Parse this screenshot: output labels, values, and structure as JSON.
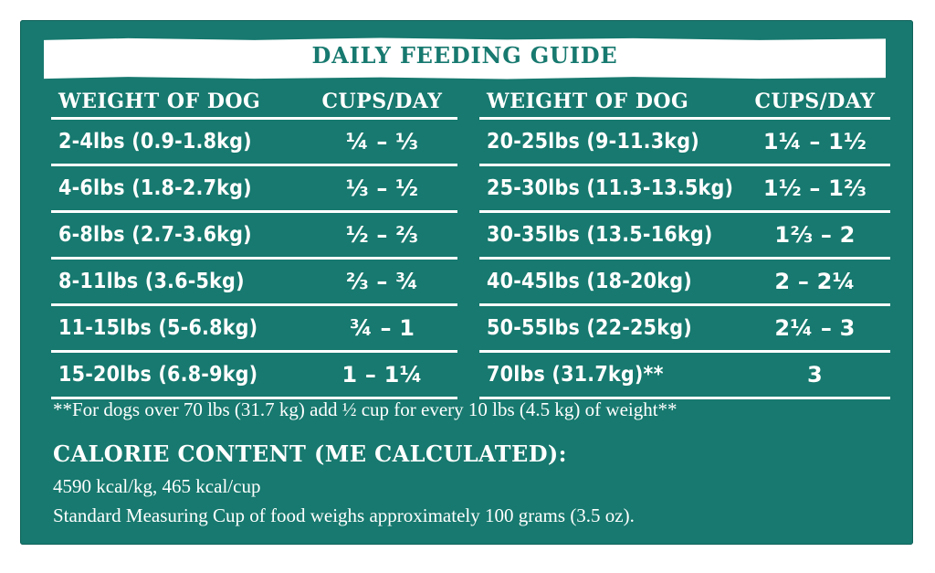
{
  "title": "DAILY FEEDING GUIDE",
  "headers": {
    "weight": "WEIGHT OF DOG",
    "cups": "CUPS/DAY"
  },
  "left_rows": [
    {
      "weight": "2-4lbs (0.9-1.8kg)",
      "cups": "¼ – ⅓"
    },
    {
      "weight": "4-6lbs (1.8-2.7kg)",
      "cups": "⅓ – ½"
    },
    {
      "weight": "6-8lbs (2.7-3.6kg)",
      "cups": "½ – ⅔"
    },
    {
      "weight": "8-11lbs (3.6-5kg)",
      "cups": "⅔ – ¾"
    },
    {
      "weight": "11-15lbs (5-6.8kg)",
      "cups": "¾ – 1"
    },
    {
      "weight": "15-20lbs (6.8-9kg)",
      "cups": "1 – 1¼"
    }
  ],
  "right_rows": [
    {
      "weight": "20-25lbs (9-11.3kg)",
      "cups": "1¼ – 1½"
    },
    {
      "weight": "25-30lbs (11.3-13.5kg)",
      "cups": "1½ – 1⅔"
    },
    {
      "weight": "30-35lbs (13.5-16kg)",
      "cups": "1⅔ – 2"
    },
    {
      "weight": "40-45lbs (18-20kg)",
      "cups": "2 – 2¼"
    },
    {
      "weight": "50-55lbs (22-25kg)",
      "cups": "2¼ – 3"
    },
    {
      "weight": "70lbs (31.7kg)**",
      "cups": "3"
    }
  ],
  "note": "**For dogs over 70 lbs (31.7 kg) add ½ cup for every 10 lbs (4.5 kg) of weight**",
  "calorie": {
    "heading": "CALORIE CONTENT (ME CALCULATED):",
    "line1": "4590 kcal/kg, 465 kcal/cup",
    "line2": "Standard Measuring Cup of food weighs approximately 100 grams (3.5 oz)."
  },
  "colors": {
    "panel": "#17796f",
    "text": "#ffffff"
  }
}
